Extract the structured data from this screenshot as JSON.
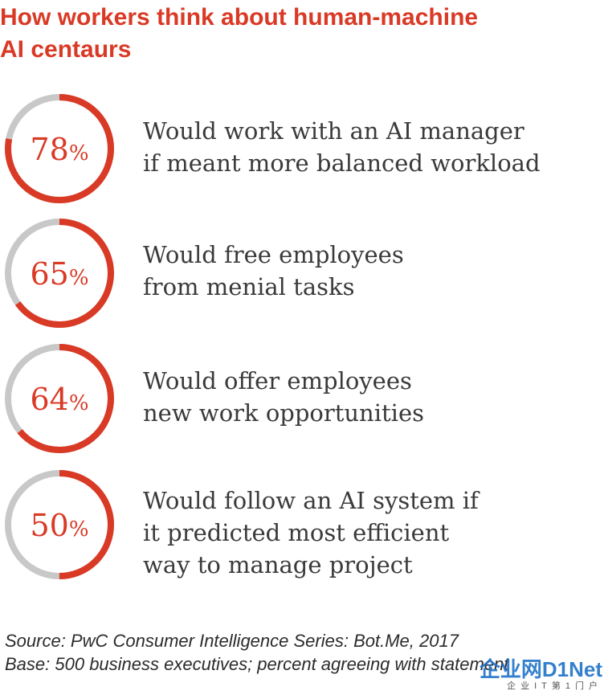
{
  "title": {
    "line1": "How workers think about human-machine",
    "line2": "AI centaurs"
  },
  "chart_data": {
    "type": "pie",
    "title": "How workers think about human-machine AI centaurs",
    "unit": "%",
    "colors": {
      "value": "#d93a26",
      "remainder": "#c8c8c8",
      "text": "#d93a26"
    },
    "items": [
      {
        "value": 78,
        "lines": [
          "Would work with an AI manager",
          "if meant more balanced workload"
        ]
      },
      {
        "value": 65,
        "lines": [
          "Would free employees",
          "from menial tasks"
        ]
      },
      {
        "value": 64,
        "lines": [
          "Would offer employees",
          "new work opportunities"
        ]
      },
      {
        "value": 50,
        "lines": [
          "Would follow an AI system if",
          "it predicted most efficient",
          "way to manage project"
        ]
      }
    ]
  },
  "footer": {
    "source": "Source: PwC Consumer Intelligence Series: Bot.Me, 2017",
    "base": "Base: 500 business executives; percent agreeing with statement"
  },
  "watermark": {
    "main": "企业网D1Net",
    "sub": "企业IT第1门户"
  }
}
